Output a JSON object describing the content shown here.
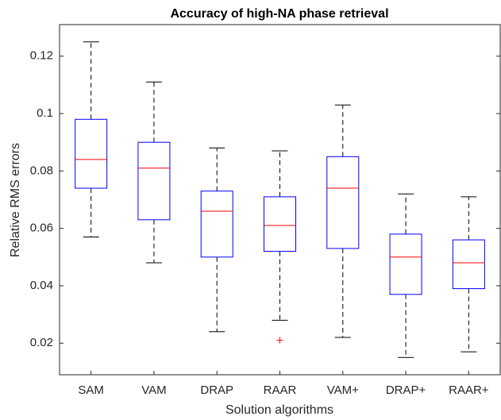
{
  "chart_data": {
    "type": "boxplot",
    "title": "Accuracy of high-NA phase retrieval",
    "xlabel": "Solution algorithms",
    "ylabel": "Relative RMS errors",
    "categories": [
      "SAM",
      "VAM",
      "DRAP",
      "RAAR",
      "VAM+",
      "DRAP+",
      "RAAR+"
    ],
    "whisker_low": [
      0.057,
      0.048,
      0.024,
      0.028,
      0.022,
      0.015,
      0.017
    ],
    "q1": [
      0.074,
      0.063,
      0.05,
      0.052,
      0.053,
      0.037,
      0.039
    ],
    "median": [
      0.084,
      0.081,
      0.066,
      0.061,
      0.074,
      0.05,
      0.048
    ],
    "q3": [
      0.098,
      0.09,
      0.073,
      0.071,
      0.085,
      0.058,
      0.056
    ],
    "whisker_high": [
      0.125,
      0.111,
      0.088,
      0.087,
      0.103,
      0.072,
      0.071
    ],
    "outliers": [
      [],
      [],
      [],
      [
        0.021
      ],
      [],
      [],
      []
    ],
    "box_color": "#0000ff",
    "median_color": "#ff0000",
    "whisker_color": "#000000",
    "outlier_color": "#ff0000",
    "ylim": [
      0.009,
      0.131
    ],
    "yticks": [
      0.02,
      0.04,
      0.06,
      0.08,
      0.1,
      0.12
    ]
  }
}
